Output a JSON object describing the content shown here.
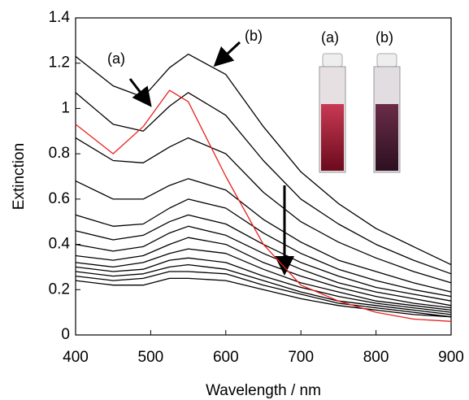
{
  "chart_data": {
    "type": "line",
    "xlabel": "Wavelength / nm",
    "ylabel": "Extinction",
    "annotations": [
      "(a)",
      "(b)",
      "(a)",
      "(b)"
    ],
    "x": [
      400,
      450,
      490,
      525,
      550,
      600,
      650,
      700,
      750,
      800,
      850,
      900
    ],
    "series": [
      {
        "color": "#e8201c",
        "values": [
          0.93,
          0.8,
          0.92,
          1.08,
          1.03,
          0.7,
          0.4,
          0.22,
          0.15,
          0.1,
          0.07,
          0.06
        ]
      },
      {
        "color": "#000000",
        "values": [
          1.23,
          1.1,
          1.05,
          1.18,
          1.24,
          1.15,
          0.92,
          0.72,
          0.58,
          0.47,
          0.39,
          0.31
        ]
      },
      {
        "color": "#000000",
        "values": [
          1.07,
          0.93,
          0.9,
          1.01,
          1.07,
          0.97,
          0.77,
          0.6,
          0.49,
          0.4,
          0.33,
          0.27
        ]
      },
      {
        "color": "#000000",
        "values": [
          0.87,
          0.77,
          0.76,
          0.83,
          0.87,
          0.8,
          0.63,
          0.5,
          0.41,
          0.34,
          0.28,
          0.23
        ]
      },
      {
        "color": "#000000",
        "values": [
          0.68,
          0.6,
          0.6,
          0.66,
          0.69,
          0.64,
          0.51,
          0.41,
          0.33,
          0.28,
          0.23,
          0.19
        ]
      },
      {
        "color": "#000000",
        "values": [
          0.53,
          0.48,
          0.49,
          0.56,
          0.6,
          0.56,
          0.45,
          0.36,
          0.29,
          0.24,
          0.2,
          0.17
        ]
      },
      {
        "color": "#000000",
        "values": [
          0.46,
          0.42,
          0.44,
          0.5,
          0.53,
          0.49,
          0.4,
          0.32,
          0.26,
          0.21,
          0.18,
          0.15
        ]
      },
      {
        "color": "#000000",
        "values": [
          0.4,
          0.37,
          0.39,
          0.45,
          0.48,
          0.44,
          0.36,
          0.29,
          0.23,
          0.19,
          0.16,
          0.13
        ]
      },
      {
        "color": "#000000",
        "values": [
          0.35,
          0.33,
          0.35,
          0.4,
          0.43,
          0.4,
          0.32,
          0.26,
          0.21,
          0.17,
          0.14,
          0.12
        ]
      },
      {
        "color": "#000000",
        "values": [
          0.32,
          0.3,
          0.32,
          0.36,
          0.38,
          0.36,
          0.29,
          0.23,
          0.19,
          0.15,
          0.13,
          0.11
        ]
      },
      {
        "color": "#000000",
        "values": [
          0.3,
          0.28,
          0.29,
          0.33,
          0.34,
          0.32,
          0.26,
          0.21,
          0.17,
          0.14,
          0.12,
          0.1
        ]
      },
      {
        "color": "#000000",
        "values": [
          0.28,
          0.26,
          0.27,
          0.3,
          0.31,
          0.29,
          0.24,
          0.19,
          0.15,
          0.13,
          0.11,
          0.09
        ]
      },
      {
        "color": "#000000",
        "values": [
          0.26,
          0.24,
          0.25,
          0.28,
          0.28,
          0.27,
          0.22,
          0.18,
          0.14,
          0.12,
          0.1,
          0.08
        ]
      },
      {
        "color": "#000000",
        "values": [
          0.24,
          0.22,
          0.22,
          0.25,
          0.25,
          0.24,
          0.2,
          0.16,
          0.13,
          0.11,
          0.09,
          0.08
        ]
      }
    ],
    "xlim": [
      400,
      900
    ],
    "xticks": [
      400,
      500,
      600,
      700,
      800,
      900
    ],
    "ylim": [
      0,
      1.4
    ],
    "yticks": [
      0,
      0.2,
      0.4,
      0.6,
      0.8,
      1,
      1.2,
      1.4
    ],
    "grid": false
  }
}
